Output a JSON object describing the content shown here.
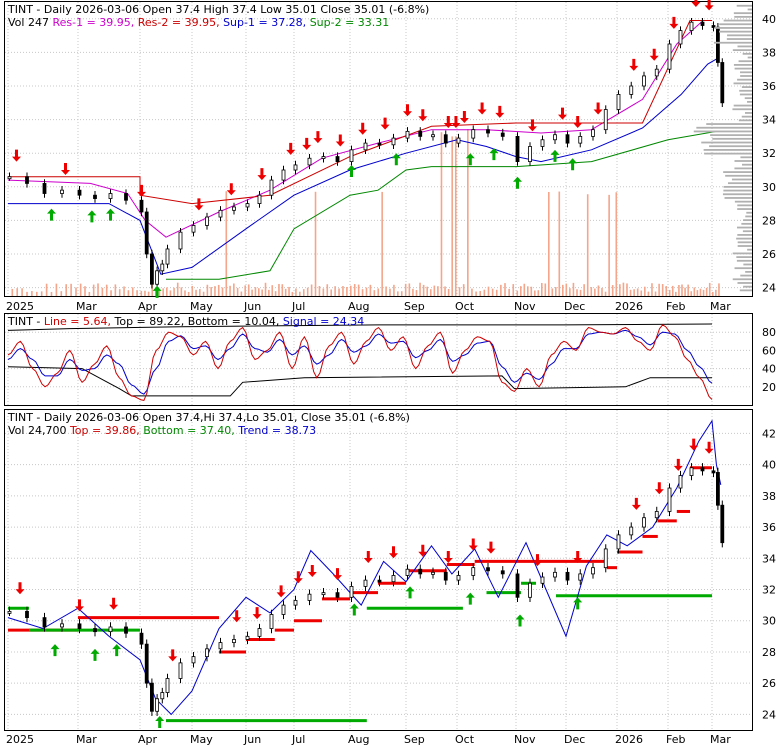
{
  "chart_data": [
    {
      "type": "candlestick",
      "name": "price-panel",
      "header": {
        "line1": [
          {
            "text": "TINT - Daily 2026-03-06 Open 37.4   High 37.4   Low 35.01   Close 35.01 (-6.8%)",
            "color": "#000000"
          }
        ],
        "line2": [
          {
            "text": "Vol 247 ",
            "color": "#000000"
          },
          {
            "text": "Res-1 = 39.95, ",
            "color": "#cc00cc"
          },
          {
            "text": "Res-2 = 39.95, ",
            "color": "#cc0000"
          },
          {
            "text": "Sup-1 = 37.28, ",
            "color": "#0000cc"
          },
          {
            "text": "Sup-2 = 33.31",
            "color": "#008800"
          }
        ]
      },
      "x_labels": [
        "2025",
        "Mar",
        "Apr",
        "May",
        "Jun",
        "Jul",
        "Aug",
        "Sep",
        "Oct",
        "Nov",
        "Dec",
        "2026",
        "Feb",
        "Mar"
      ],
      "y_ticks": [
        24,
        26,
        28,
        30,
        32,
        34,
        36,
        38,
        40
      ],
      "ylim": [
        23.5,
        41.0
      ],
      "series_style": {
        "res1": "#cc00cc",
        "sup1": "#0000cc",
        "sup2": "#008800",
        "volume": "#f4a58a"
      }
    },
    {
      "type": "line",
      "name": "stochastic-panel",
      "header": [
        {
          "text": "TINT - ",
          "color": "#000000"
        },
        {
          "text": "Line = 5.64, ",
          "color": "#cc0000"
        },
        {
          "text": "Top = 89.22, ",
          "color": "#000000"
        },
        {
          "text": "Bottom = 10.04, ",
          "color": "#000000"
        },
        {
          "text": "Signal = 24.34",
          "color": "#0000cc"
        }
      ],
      "y_ticks": [
        20,
        40,
        60,
        80
      ],
      "ylim": [
        0,
        100
      ],
      "series_style": {
        "line": "#cc0000",
        "signal": "#0000cc",
        "bands": "#000000"
      }
    },
    {
      "type": "candlestick",
      "name": "trend-panel",
      "header": {
        "line1": [
          {
            "text": "TINT - Daily 2026-03-06 Open 37.4,Hi 37.4,Lo 35.01, Close 35.01 (-6.8%)",
            "color": "#000000"
          }
        ],
        "line2": [
          {
            "text": "Vol 24,700 ",
            "color": "#000000"
          },
          {
            "text": "Top = 39.86, ",
            "color": "#cc0000"
          },
          {
            "text": "Bottom = 37.40, ",
            "color": "#008800"
          },
          {
            "text": "Trend = 38.73",
            "color": "#0000cc"
          }
        ]
      },
      "x_labels": [
        "2025",
        "Mar",
        "Apr",
        "May",
        "Jun",
        "Jul",
        "Aug",
        "Sep",
        "Oct",
        "Nov",
        "Dec",
        "2026",
        "Feb",
        "Mar"
      ],
      "y_ticks": [
        24,
        26,
        28,
        30,
        32,
        34,
        36,
        38,
        40,
        42
      ],
      "ylim": [
        23.0,
        43.5
      ],
      "series_style": {
        "top": "#ee0000",
        "bottom": "#00aa00",
        "trend": "#0000cc"
      }
    }
  ],
  "price_series": {
    "x_months": [
      0,
      0.25,
      0.5,
      0.75,
      1.0,
      1.25,
      1.5,
      1.75,
      2.0,
      2.1,
      2.2,
      2.3,
      2.4,
      2.5,
      2.75,
      3.0,
      3.25,
      3.5,
      3.75,
      4.0,
      4.25,
      4.5,
      4.75,
      5.0,
      5.25,
      5.5,
      5.75,
      6.0,
      6.25,
      6.5,
      6.75,
      7.0,
      7.25,
      7.5,
      7.75,
      8.0,
      8.25,
      8.5,
      8.75,
      9.0,
      9.25,
      9.5,
      9.75,
      10.0,
      10.25,
      10.5,
      10.75,
      11.0,
      11.25,
      11.5,
      11.75,
      12.0,
      12.25,
      12.5,
      12.75,
      13.0,
      13.1,
      13.2
    ],
    "close": [
      30.6,
      30.2,
      29.6,
      29.8,
      29.5,
      29.3,
      29.6,
      29.2,
      28.5,
      26.0,
      24.2,
      25.0,
      25.4,
      26.3,
      27.3,
      27.7,
      28.2,
      28.6,
      28.8,
      29.0,
      29.5,
      30.4,
      31.0,
      31.3,
      31.7,
      31.8,
      31.5,
      32.2,
      32.6,
      32.5,
      32.9,
      33.3,
      33.0,
      33.1,
      32.6,
      32.9,
      33.4,
      33.2,
      33.0,
      31.5,
      32.4,
      32.8,
      33.1,
      32.6,
      33.0,
      33.4,
      34.6,
      35.5,
      36.0,
      36.6,
      37.0,
      38.5,
      39.3,
      39.8,
      39.6,
      39.5,
      37.4,
      35.0
    ]
  },
  "stoch_series": {
    "line": [
      55,
      70,
      40,
      20,
      35,
      60,
      25,
      45,
      65,
      30,
      10,
      5,
      60,
      80,
      75,
      55,
      70,
      40,
      70,
      85,
      50,
      60,
      80,
      40,
      75,
      30,
      65,
      80,
      45,
      70,
      85,
      60,
      75,
      40,
      65,
      80,
      35,
      60,
      75,
      70,
      25,
      15,
      40,
      20,
      55,
      70,
      60,
      85,
      80,
      78,
      85,
      70,
      60,
      88,
      75,
      50,
      30,
      6
    ],
    "signal": [
      50,
      62,
      50,
      32,
      32,
      50,
      38,
      40,
      55,
      45,
      22,
      12,
      40,
      70,
      76,
      62,
      65,
      50,
      62,
      78,
      62,
      58,
      72,
      55,
      65,
      45,
      55,
      72,
      58,
      65,
      78,
      68,
      70,
      52,
      60,
      72,
      48,
      55,
      68,
      70,
      42,
      25,
      35,
      28,
      45,
      62,
      62,
      78,
      80,
      78,
      82,
      75,
      66,
      80,
      78,
      60,
      42,
      24
    ]
  }
}
